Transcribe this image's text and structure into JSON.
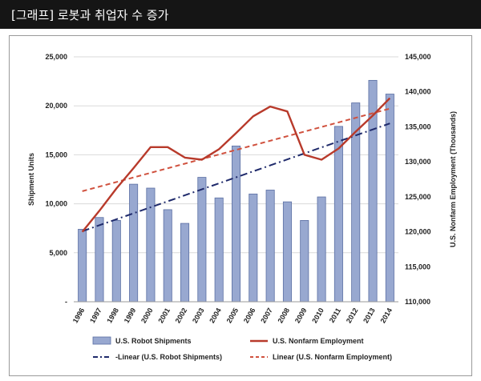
{
  "header": {
    "title": "[그래프] 로봇과 취업자 수 증가"
  },
  "colors": {
    "header_bg": "#151515",
    "bar_fill": "#98a8d0",
    "bar_stroke": "#5b6fa3",
    "employment_line": "#b83a2b",
    "robot_trend": "#1f2a6b",
    "employment_trend": "#d0513e",
    "grid": "#d9d9d9"
  },
  "chart_data": {
    "type": "bar",
    "categories": [
      "1996",
      "1997",
      "1998",
      "1999",
      "2000",
      "2001",
      "2002",
      "2003",
      "2004",
      "2005",
      "2006",
      "2007",
      "2008",
      "2009",
      "2010",
      "2011",
      "2012",
      "2013",
      "2014"
    ],
    "series": [
      {
        "name": "U.S. Robot Shipments",
        "type": "bar",
        "axis": "left",
        "values": [
          7400,
          8600,
          8300,
          12000,
          11600,
          9400,
          8000,
          12700,
          10600,
          15900,
          11000,
          11400,
          10200,
          8300,
          10700,
          17900,
          20300,
          22600,
          21200
        ]
      },
      {
        "name": "U.S. Nonfarm Employment",
        "type": "line",
        "axis": "right",
        "values": [
          120000,
          123000,
          126200,
          129100,
          132100,
          132100,
          130600,
          130300,
          131800,
          134100,
          136500,
          137900,
          137200,
          131000,
          130300,
          131900,
          134300,
          136600,
          139100
        ]
      },
      {
        "name": "-Linear (U.S. Robot Shipments)",
        "type": "trendline",
        "axis": "left",
        "start": 7200,
        "end": 18200
      },
      {
        "name": "Linear (U.S. Nonfarm Employment)",
        "type": "trendline",
        "axis": "right",
        "start": 125800,
        "end": 137600
      }
    ],
    "y_left": {
      "label": "Shipment Units",
      "range": [
        0,
        25000
      ],
      "ticks": [
        "-",
        "5,000",
        "10,000",
        "15,000",
        "20,000",
        "25,000"
      ]
    },
    "y_right": {
      "label": "U.S. Nonfarm Employment (Thousands)",
      "range": [
        110000,
        145000
      ],
      "ticks": [
        "110,000",
        "115,000",
        "120,000",
        "125,000",
        "130,000",
        "135,000",
        "140,000",
        "145,000"
      ]
    },
    "grid": true,
    "legend_position": "bottom"
  }
}
